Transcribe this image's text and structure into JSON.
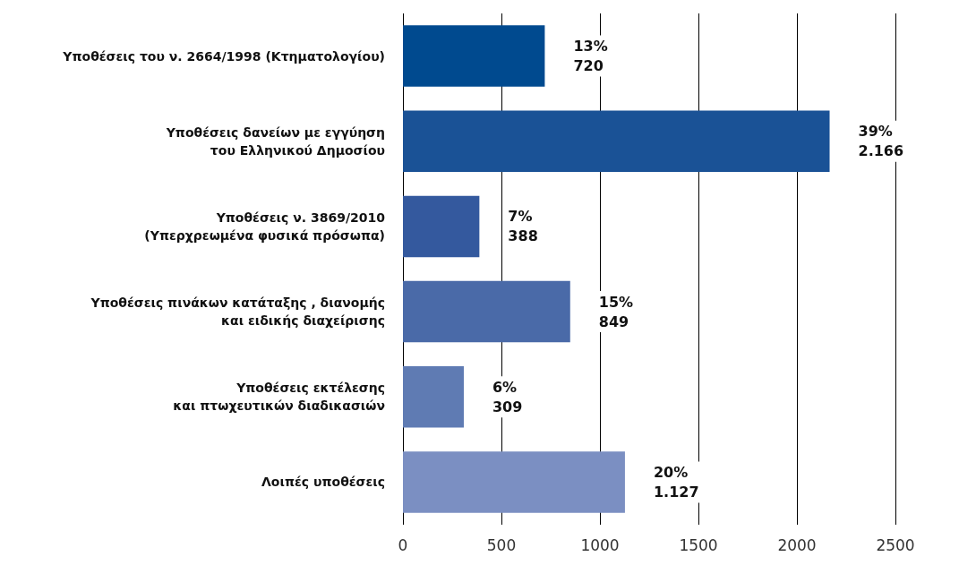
{
  "chart_data": {
    "type": "bar",
    "orientation": "horizontal",
    "categories": [
      "Υποθέσεις του ν. 2664/1998 (Κτηματολογίου)",
      "Υποθέσεις δανείων με εγγύηση\nτου Ελληνικού Δημοσίου",
      "Υποθέσεις ν. 3869/2010\n(Υπερχρεωμένα φυσικά πρόσωπα)",
      "Υποθέσεις πινάκων κατάταξης , διανομής\nκαι ειδικής διαχείρισης",
      "Υποθέσεις εκτέλεσης\nκαι πτωχευτικών διαδικασιών",
      "Λοιπές υποθέσεις"
    ],
    "values": [
      720,
      2166,
      388,
      849,
      309,
      1127
    ],
    "colors": [
      "#004a8f",
      "#1a5296",
      "#34599e",
      "#4a6aa8",
      "#5f7bb3",
      "#7b8fc2"
    ],
    "value_labels": [
      "13%\n720",
      "39%\n2.166",
      "7%\n388",
      "15%\n849",
      "6%\n309",
      "20%\n1.127"
    ],
    "xlim": [
      0,
      2500
    ],
    "xticks": [
      0,
      500,
      1000,
      1500,
      2000,
      2500
    ],
    "grid": "x"
  }
}
